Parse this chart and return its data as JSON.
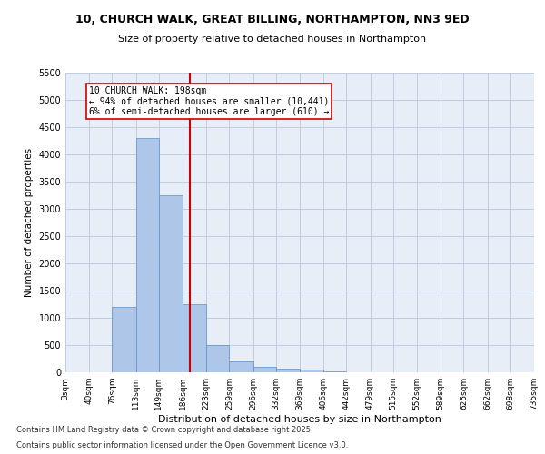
{
  "title_line1": "10, CHURCH WALK, GREAT BILLING, NORTHAMPTON, NN3 9ED",
  "title_line2": "Size of property relative to detached houses in Northampton",
  "xlabel": "Distribution of detached houses by size in Northampton",
  "ylabel": "Number of detached properties",
  "bins": [
    3,
    40,
    76,
    113,
    149,
    186,
    223,
    259,
    296,
    332,
    369,
    406,
    442,
    479,
    515,
    552,
    589,
    625,
    662,
    698,
    735
  ],
  "bin_labels": [
    "3sqm",
    "40sqm",
    "76sqm",
    "113sqm",
    "149sqm",
    "186sqm",
    "223sqm",
    "259sqm",
    "296sqm",
    "332sqm",
    "369sqm",
    "406sqm",
    "442sqm",
    "479sqm",
    "515sqm",
    "552sqm",
    "589sqm",
    "625sqm",
    "662sqm",
    "698sqm",
    "735sqm"
  ],
  "counts": [
    0,
    0,
    1200,
    4300,
    3250,
    1250,
    500,
    200,
    100,
    75,
    50,
    20,
    5,
    2,
    1,
    0,
    0,
    0,
    0,
    0
  ],
  "bar_color": "#aec6e8",
  "bar_edge_color": "#5a8fc4",
  "property_size": 198,
  "vline_color": "#cc0000",
  "annotation_text": "10 CHURCH WALK: 198sqm\n← 94% of detached houses are smaller (10,441)\n6% of semi-detached houses are larger (610) →",
  "annotation_box_color": "#ffffff",
  "annotation_box_edge": "#cc0000",
  "ylim": [
    0,
    5500
  ],
  "yticks": [
    0,
    500,
    1000,
    1500,
    2000,
    2500,
    3000,
    3500,
    4000,
    4500,
    5000,
    5500
  ],
  "footer_line1": "Contains HM Land Registry data © Crown copyright and database right 2025.",
  "footer_line2": "Contains public sector information licensed under the Open Government Licence v3.0.",
  "background_color": "#e8eef8",
  "grid_color": "#c0cce0"
}
